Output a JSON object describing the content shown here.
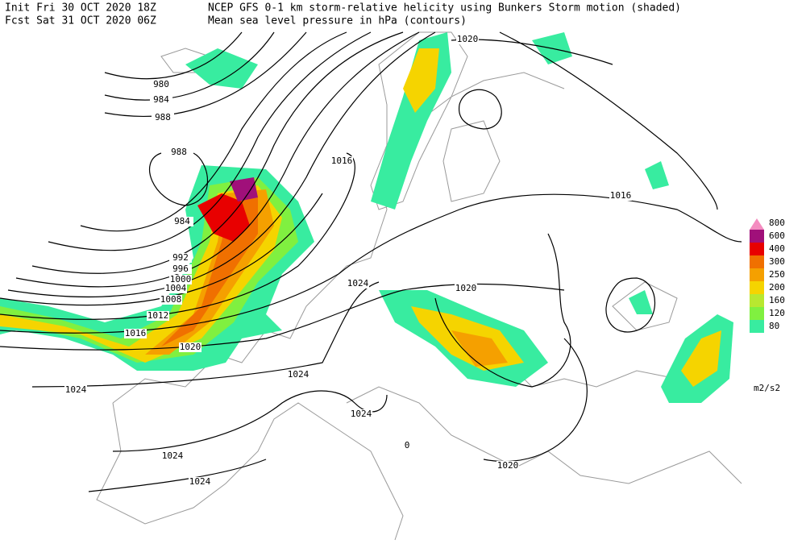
{
  "header": {
    "init": "Init  Fri 30 OCT 2020 18Z",
    "fcst": "Fcst Sat 31 OCT 2020 06Z",
    "title": "NCEP GFS 0-1 km storm-relative helicity using Bunkers Storm motion (shaded)",
    "subtitle": "Mean sea level pressure in hPa (contours)"
  },
  "legend": {
    "unit": "m2/s2",
    "items": [
      {
        "label": "800",
        "color": "#f48cc0"
      },
      {
        "label": "600",
        "color": "#a0107a"
      },
      {
        "label": "400",
        "color": "#e80000"
      },
      {
        "label": "300",
        "color": "#f07000"
      },
      {
        "label": "250",
        "color": "#f5a000"
      },
      {
        "label": "200",
        "color": "#f5d400"
      },
      {
        "label": "160",
        "color": "#b8e830"
      },
      {
        "label": "120",
        "color": "#80f040"
      },
      {
        "label": "80",
        "color": "#38eca0"
      }
    ]
  },
  "isobar_labels": [
    980,
    984,
    988,
    988,
    984,
    992,
    996,
    1000,
    1004,
    1008,
    1012,
    1016,
    1020,
    1024,
    1024,
    1024,
    1024,
    1024,
    1016,
    1016,
    1024,
    1020,
    1020,
    1020,
    0
  ]
}
